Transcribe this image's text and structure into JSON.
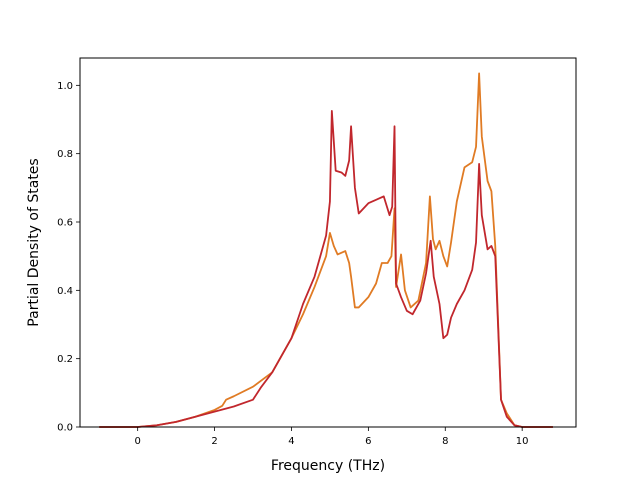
{
  "chart_data": {
    "type": "line",
    "title": "",
    "xlabel": "Frequency (THz)",
    "ylabel": "Partial Density of States",
    "xlim": [
      -1.5,
      11.4
    ],
    "ylim": [
      0.0,
      1.08
    ],
    "xticks": [
      0,
      2,
      4,
      6,
      8,
      10
    ],
    "yticks": [
      0.0,
      0.2,
      0.4,
      0.6,
      0.8,
      1.0
    ],
    "xtick_labels": [
      "0",
      "2",
      "4",
      "6",
      "8",
      "10"
    ],
    "ytick_labels": [
      "0.0",
      "0.2",
      "0.4",
      "0.6",
      "0.8",
      "1.0"
    ],
    "grid": false,
    "legend": false,
    "series": [
      {
        "color": "#e07b24",
        "x": [
          -1.0,
          0.0,
          0.5,
          1.0,
          1.5,
          2.0,
          2.2,
          2.3,
          2.5,
          3.0,
          3.5,
          4.0,
          4.3,
          4.6,
          4.9,
          5.0,
          5.1,
          5.2,
          5.4,
          5.5,
          5.55,
          5.65,
          5.75,
          6.0,
          6.2,
          6.35,
          6.5,
          6.6,
          6.68,
          6.72,
          6.85,
          6.95,
          7.1,
          7.3,
          7.5,
          7.6,
          7.68,
          7.75,
          7.85,
          7.95,
          8.05,
          8.15,
          8.3,
          8.5,
          8.7,
          8.8,
          8.88,
          8.95,
          9.1,
          9.2,
          9.3,
          9.45,
          9.6,
          9.8,
          10.0,
          10.8
        ],
        "y": [
          0.0,
          0.0,
          0.005,
          0.015,
          0.03,
          0.05,
          0.062,
          0.08,
          0.09,
          0.118,
          0.16,
          0.26,
          0.33,
          0.41,
          0.5,
          0.568,
          0.53,
          0.505,
          0.515,
          0.48,
          0.44,
          0.35,
          0.35,
          0.38,
          0.42,
          0.48,
          0.48,
          0.5,
          0.64,
          0.41,
          0.505,
          0.4,
          0.35,
          0.37,
          0.48,
          0.675,
          0.55,
          0.52,
          0.545,
          0.5,
          0.47,
          0.54,
          0.66,
          0.76,
          0.775,
          0.82,
          1.035,
          0.85,
          0.72,
          0.69,
          0.53,
          0.08,
          0.04,
          0.005,
          0.0,
          0.0
        ]
      },
      {
        "color": "#c1272d",
        "x": [
          -1.0,
          0.0,
          0.5,
          1.0,
          1.5,
          2.0,
          2.5,
          3.0,
          3.2,
          3.5,
          4.0,
          4.3,
          4.6,
          4.9,
          5.0,
          5.05,
          5.15,
          5.3,
          5.4,
          5.5,
          5.55,
          5.65,
          5.75,
          6.0,
          6.2,
          6.4,
          6.55,
          6.62,
          6.68,
          6.72,
          6.85,
          7.0,
          7.15,
          7.35,
          7.5,
          7.62,
          7.7,
          7.85,
          7.95,
          8.05,
          8.15,
          8.3,
          8.5,
          8.7,
          8.8,
          8.88,
          8.95,
          9.1,
          9.2,
          9.3,
          9.45,
          9.6,
          9.8,
          10.0,
          10.8
        ],
        "y": [
          0.0,
          0.0,
          0.005,
          0.015,
          0.03,
          0.045,
          0.06,
          0.08,
          0.115,
          0.16,
          0.26,
          0.36,
          0.44,
          0.56,
          0.66,
          0.925,
          0.75,
          0.745,
          0.735,
          0.78,
          0.88,
          0.7,
          0.625,
          0.655,
          0.665,
          0.675,
          0.62,
          0.645,
          0.88,
          0.42,
          0.38,
          0.34,
          0.33,
          0.37,
          0.45,
          0.545,
          0.44,
          0.36,
          0.26,
          0.27,
          0.32,
          0.36,
          0.4,
          0.46,
          0.54,
          0.77,
          0.62,
          0.52,
          0.53,
          0.5,
          0.08,
          0.03,
          0.005,
          0.0,
          0.0
        ]
      }
    ]
  }
}
